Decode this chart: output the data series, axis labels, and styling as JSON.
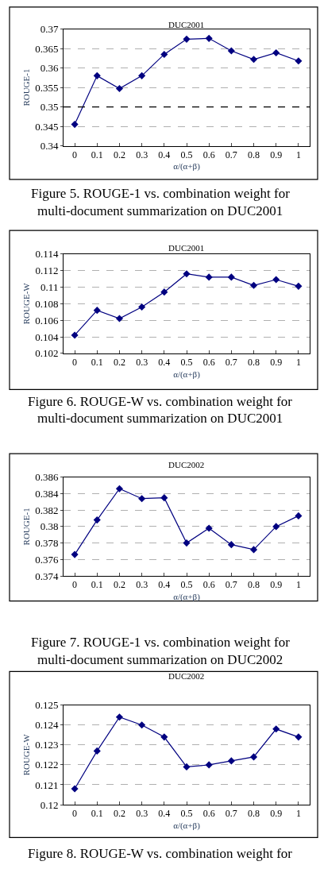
{
  "chart_data": [
    {
      "type": "line",
      "title": "DUC2001",
      "xlabel": "α/(α+β)",
      "ylabel": "ROUGE-1",
      "categories": [
        "0",
        "0.1",
        "0.2",
        "0.3",
        "0.4",
        "0.5",
        "0.6",
        "0.7",
        "0.8",
        "0.9",
        "1"
      ],
      "series": [
        {
          "color": "#000080",
          "values": [
            0.3455,
            0.358,
            0.3547,
            0.358,
            0.3635,
            0.3674,
            0.3676,
            0.3644,
            0.3622,
            0.3639,
            0.3618
          ]
        }
      ],
      "ylim": [
        0.34,
        0.37
      ],
      "yticks": [
        0.34,
        0.345,
        0.35,
        0.355,
        0.36,
        0.365,
        0.37
      ],
      "grid": "y",
      "marker": "diamond",
      "line_style": "solid",
      "ref_lines": [
        {
          "axis": "y",
          "value": 0.35,
          "color": "#000000",
          "line_style": "dashed"
        }
      ],
      "annotations": [
        "Figure 5. ROUGE-1 vs. combination weight for",
        "multi-document summarization on DUC2001"
      ]
    },
    {
      "type": "line",
      "title": "DUC2001",
      "xlabel": "α/(α+β)",
      "ylabel": "ROUGE-W",
      "categories": [
        "0",
        "0.1",
        "0.2",
        "0.3",
        "0.4",
        "0.5",
        "0.6",
        "0.7",
        "0.8",
        "0.9",
        "1"
      ],
      "series": [
        {
          "color": "#000080",
          "values": [
            0.1042,
            0.1072,
            0.1062,
            0.1076,
            0.1094,
            0.1116,
            0.1112,
            0.1112,
            0.1102,
            0.1109,
            0.1101
          ]
        }
      ],
      "ylim": [
        0.102,
        0.114
      ],
      "yticks": [
        0.102,
        0.104,
        0.106,
        0.108,
        0.11,
        0.112,
        0.114
      ],
      "grid": "y",
      "marker": "diamond",
      "line_style": "solid",
      "annotations": [
        "Figure 6. ROUGE-W vs. combination weight for",
        "multi-document summarization on DUC2001"
      ]
    },
    {
      "type": "line",
      "title": "DUC2002",
      "xlabel": "α/(α+β)",
      "ylabel": "ROUGE-1",
      "categories": [
        "0",
        "0.1",
        "0.2",
        "0.3",
        "0.4",
        "0.5",
        "0.6",
        "0.7",
        "0.8",
        "0.9",
        "1"
      ],
      "series": [
        {
          "color": "#000080",
          "values": [
            0.3766,
            0.3808,
            0.3846,
            0.3834,
            0.3835,
            0.378,
            0.3798,
            0.3778,
            0.3772,
            0.38,
            0.3813
          ]
        }
      ],
      "ylim": [
        0.374,
        0.386
      ],
      "yticks": [
        0.374,
        0.376,
        0.378,
        0.38,
        0.382,
        0.384,
        0.386
      ],
      "grid": "y",
      "marker": "diamond",
      "line_style": "solid",
      "annotations": [
        "Figure 7. ROUGE-1 vs. combination weight for",
        "multi-document summarization on DUC2002"
      ]
    },
    {
      "type": "line",
      "title": "DUC2002",
      "xlabel": "α/(α+β)",
      "ylabel": "ROUGE-W",
      "categories": [
        "0",
        "0.1",
        "0.2",
        "0.3",
        "0.4",
        "0.5",
        "0.6",
        "0.7",
        "0.8",
        "0.9",
        "1"
      ],
      "series": [
        {
          "color": "#000080",
          "values": [
            0.1208,
            0.1227,
            0.1244,
            0.124,
            0.1234,
            0.1219,
            0.122,
            0.1222,
            0.1224,
            0.1238,
            0.1234
          ]
        }
      ],
      "ylim": [
        0.12,
        0.125
      ],
      "yticks": [
        0.12,
        0.121,
        0.122,
        0.123,
        0.124,
        0.125
      ],
      "grid": "y",
      "marker": "diamond",
      "line_style": "solid",
      "annotations": [
        "Figure 8. ROUGE-W vs. combination weight for"
      ]
    }
  ]
}
